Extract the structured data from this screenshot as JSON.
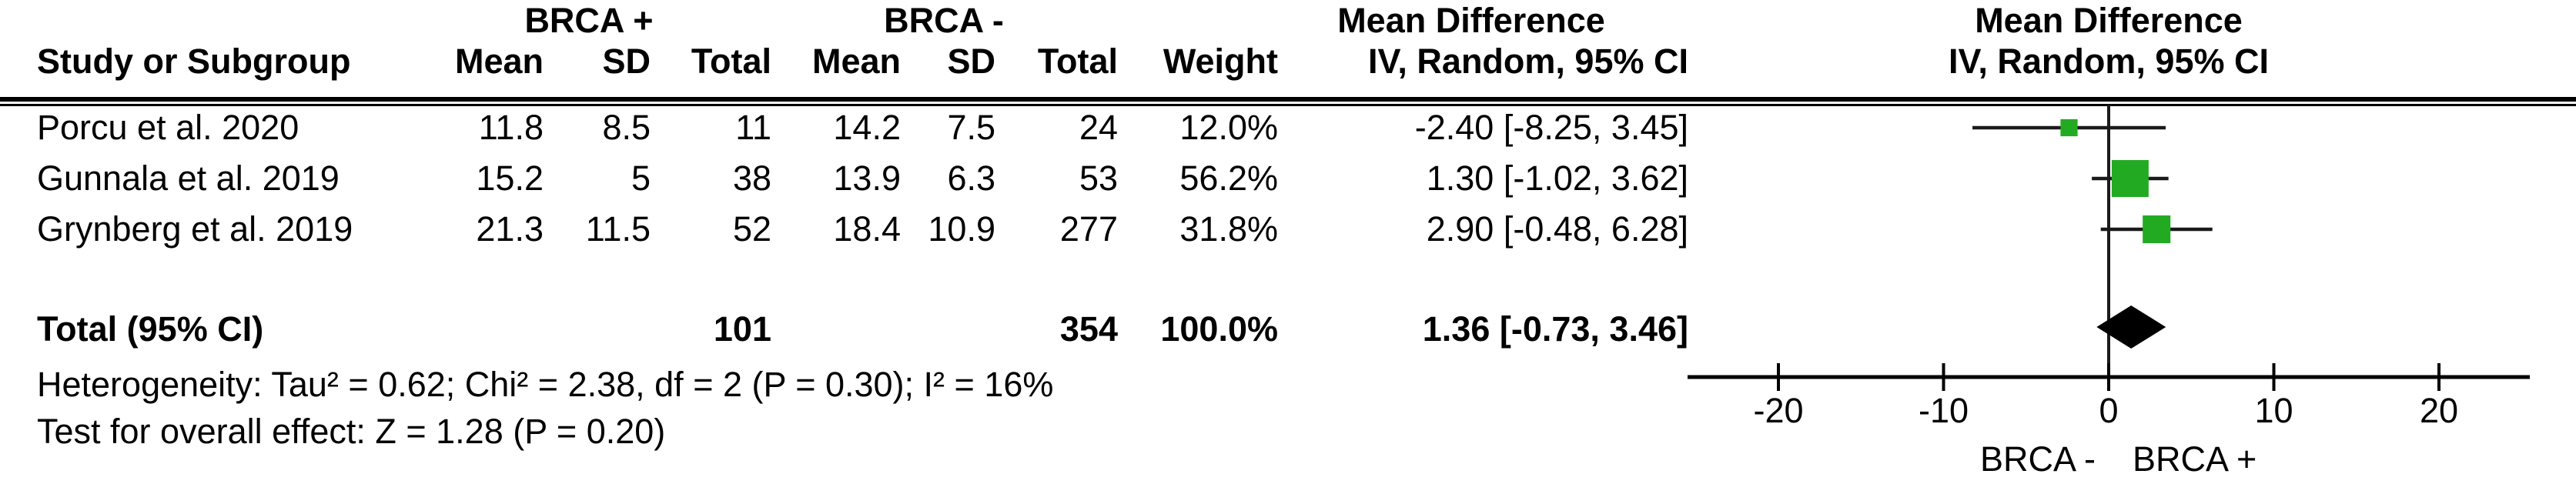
{
  "table": {
    "group1_label": "BRCA +",
    "group2_label": "BRCA -",
    "md_col_title": "Mean Difference",
    "plot_col_title": "Mean Difference",
    "md_col_subtitle": "IV, Random, 95% CI",
    "plot_col_subtitle": "IV, Random, 95% CI",
    "headers": {
      "study": "Study or Subgroup",
      "mean": "Mean",
      "sd": "SD",
      "total": "Total",
      "weight": "Weight"
    },
    "rows": [
      {
        "study": "Porcu et al. 2020",
        "mean1": "11.8",
        "sd1": "8.5",
        "total1": "11",
        "mean2": "14.2",
        "sd2": "7.5",
        "total2": "24",
        "weight": "12.0%",
        "ci": "-2.40 [-8.25, 3.45]"
      },
      {
        "study": "Gunnala et al. 2019",
        "mean1": "15.2",
        "sd1": "5",
        "total1": "38",
        "mean2": "13.9",
        "sd2": "6.3",
        "total2": "53",
        "weight": "56.2%",
        "ci": "1.30 [-1.02, 3.62]"
      },
      {
        "study": "Grynberg et al. 2019",
        "mean1": "21.3",
        "sd1": "11.5",
        "total1": "52",
        "mean2": "18.4",
        "sd2": "10.9",
        "total2": "277",
        "weight": "31.8%",
        "ci": "2.90 [-0.48, 6.28]"
      }
    ],
    "total_row": {
      "label": "Total (95% CI)",
      "total1": "101",
      "total2": "354",
      "weight": "100.0%",
      "ci": "1.36 [-0.73, 3.46]"
    },
    "footnotes": {
      "heterogeneity": "Heterogeneity: Tau² = 0.62; Chi² = 2.38, df = 2 (P = 0.30); I² = 16%",
      "overall_effect": "Test for overall effect: Z = 1.28 (P = 0.20)"
    }
  },
  "chart_data": {
    "type": "forest",
    "effect_measure": "Mean Difference, IV Random 95% CI",
    "x_axis": {
      "ticks": [
        -20,
        -10,
        0,
        10,
        20
      ],
      "min": -25.5,
      "max": 25.5,
      "zero_line": 0,
      "left_label": "BRCA -",
      "right_label": "BRCA +"
    },
    "studies": [
      {
        "name": "Porcu et al. 2020",
        "md": -2.4,
        "ci_low": -8.25,
        "ci_high": 3.45,
        "weight_pct": 12.0
      },
      {
        "name": "Gunnala et al. 2019",
        "md": 1.3,
        "ci_low": -1.02,
        "ci_high": 3.62,
        "weight_pct": 56.2
      },
      {
        "name": "Grynberg et al. 2019",
        "md": 2.9,
        "ci_low": -0.48,
        "ci_high": 6.28,
        "weight_pct": 31.8
      }
    ],
    "total": {
      "md": 1.36,
      "ci_low": -0.73,
      "ci_high": 3.46
    },
    "colors": {
      "marker": "#22AB22",
      "diamond": "#000000",
      "line": "#1a1a1a"
    }
  }
}
